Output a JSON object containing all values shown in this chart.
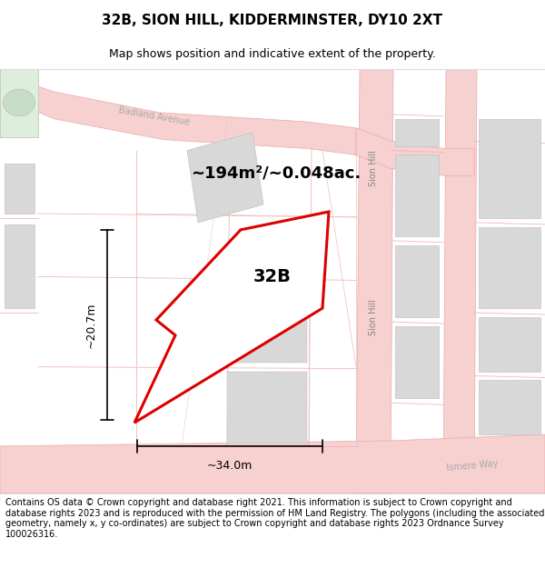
{
  "title": "32B, SION HILL, KIDDERMINSTER, DY10 2XT",
  "subtitle": "Map shows position and indicative extent of the property.",
  "area_label": "~194m²/~0.048ac.",
  "plot_label": "32B",
  "dim_width": "~34.0m",
  "dim_height": "~20.7m",
  "footer": "Contains OS data © Crown copyright and database right 2021. This information is subject to Crown copyright and database rights 2023 and is reproduced with the permission of HM Land Registry. The polygons (including the associated geometry, namely x, y co-ordinates) are subject to Crown copyright and database rights 2023 Ordnance Survey 100026316.",
  "map_bg": "#ffffff",
  "road_fill": "#f7d0d0",
  "road_edge": "#e8aaaa",
  "plot_line": "#dd0000",
  "building_fill": "#d8d8d8",
  "building_edge": "#bbbbbb",
  "green_fill": "#ddeedd",
  "green_edge": "#bbccbb",
  "plot_line_lines": "#f0c0c0",
  "title_fontsize": 11,
  "subtitle_fontsize": 9,
  "area_fontsize": 13,
  "plot_label_fontsize": 14,
  "dim_fontsize": 9,
  "road_label_fontsize": 7,
  "footer_fontsize": 7.0
}
